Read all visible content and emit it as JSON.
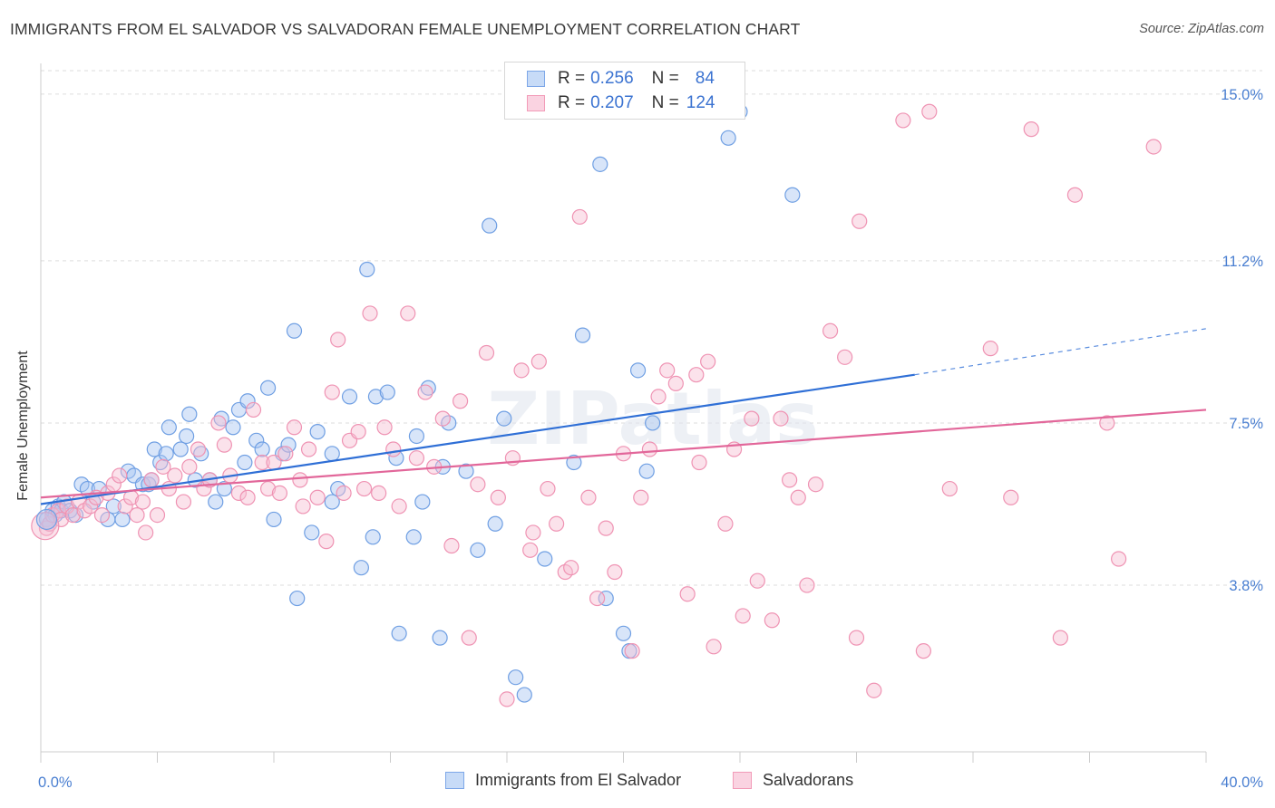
{
  "header": {
    "title": "IMMIGRANTS FROM EL SALVADOR VS SALVADORAN FEMALE UNEMPLOYMENT CORRELATION CHART",
    "source": "Source: ZipAtlas.com"
  },
  "watermark": "ZIPatlas",
  "legend": {
    "rows": [
      {
        "r_label": "R =",
        "r_value": "0.256",
        "n_label": "N =",
        "n_value": "84",
        "color": "#7da7e8"
      },
      {
        "r_label": "R =",
        "r_value": "0.207",
        "n_label": "N =",
        "n_value": "124",
        "color": "#f29bb8"
      }
    ]
  },
  "bottom_legend": {
    "items": [
      {
        "label": "Immigrants from El Salvador",
        "color": "#7da7e8"
      },
      {
        "label": "Salvadorans",
        "color": "#f29bb8"
      }
    ]
  },
  "colors": {
    "blue_fill": "#a9c6f2",
    "blue_stroke": "#6f9fe3",
    "blue_line": "#2f6fd6",
    "pink_fill": "#f7bfd2",
    "pink_stroke": "#ef93b3",
    "pink_line": "#e2679a",
    "grid": "#dddddd",
    "tick_text": "#4a7fd1"
  },
  "chart_data": {
    "type": "scatter",
    "title": "IMMIGRANTS FROM EL SALVADOR VS SALVADORAN FEMALE UNEMPLOYMENT CORRELATION CHART",
    "xlabel": "",
    "ylabel": "Female Unemployment",
    "xlim": [
      0,
      40
    ],
    "ylim": [
      0,
      15.7
    ],
    "y_ticks": [
      {
        "value": 3.8,
        "label": "3.8%"
      },
      {
        "value": 7.5,
        "label": "7.5%"
      },
      {
        "value": 11.2,
        "label": "11.2%"
      },
      {
        "value": 15.0,
        "label": "15.0%"
      }
    ],
    "x_ticks": [
      {
        "value": 0,
        "label": "0.0%"
      },
      {
        "value": 40,
        "label": "40.0%"
      }
    ],
    "grid": true,
    "legend_position": "top-center",
    "series": [
      {
        "name": "Immigrants from El Salvador",
        "r": 0.256,
        "n": 84,
        "trend": {
          "x0": 0,
          "y0": 5.65,
          "x1": 30,
          "y1": 8.6,
          "dashed_to_x": 40,
          "dashed_to_y": 9.65
        },
        "points": [
          [
            0.2,
            5.3
          ],
          [
            0.3,
            5.2
          ],
          [
            0.4,
            5.5
          ],
          [
            0.5,
            5.4
          ],
          [
            0.6,
            5.6
          ],
          [
            0.7,
            5.5
          ],
          [
            0.8,
            5.7
          ],
          [
            1.0,
            5.5
          ],
          [
            1.2,
            5.4
          ],
          [
            1.4,
            6.1
          ],
          [
            1.6,
            6.0
          ],
          [
            1.8,
            5.7
          ],
          [
            2.0,
            6.0
          ],
          [
            2.3,
            5.3
          ],
          [
            2.5,
            5.6
          ],
          [
            2.8,
            5.3
          ],
          [
            3.0,
            6.4
          ],
          [
            3.2,
            6.3
          ],
          [
            3.5,
            6.1
          ],
          [
            3.7,
            6.1
          ],
          [
            3.8,
            6.2
          ],
          [
            3.9,
            6.9
          ],
          [
            4.1,
            6.6
          ],
          [
            4.3,
            6.8
          ],
          [
            4.4,
            7.4
          ],
          [
            4.8,
            6.9
          ],
          [
            5.0,
            7.2
          ],
          [
            5.1,
            7.7
          ],
          [
            5.3,
            6.2
          ],
          [
            5.5,
            6.8
          ],
          [
            5.8,
            6.2
          ],
          [
            6.0,
            5.7
          ],
          [
            6.2,
            7.6
          ],
          [
            6.3,
            6.0
          ],
          [
            6.6,
            7.4
          ],
          [
            6.8,
            7.8
          ],
          [
            7.0,
            6.6
          ],
          [
            7.1,
            8.0
          ],
          [
            7.4,
            7.1
          ],
          [
            7.6,
            6.9
          ],
          [
            7.8,
            8.3
          ],
          [
            8.0,
            5.3
          ],
          [
            8.3,
            6.8
          ],
          [
            8.5,
            7.0
          ],
          [
            8.7,
            9.6
          ],
          [
            8.8,
            3.5
          ],
          [
            9.3,
            5.0
          ],
          [
            9.5,
            7.3
          ],
          [
            10.0,
            6.8
          ],
          [
            10.0,
            5.7
          ],
          [
            10.2,
            6.0
          ],
          [
            10.6,
            8.1
          ],
          [
            11.0,
            4.2
          ],
          [
            11.2,
            11.0
          ],
          [
            11.4,
            4.9
          ],
          [
            11.5,
            8.1
          ],
          [
            11.9,
            8.2
          ],
          [
            12.2,
            6.7
          ],
          [
            12.3,
            2.7
          ],
          [
            12.8,
            4.9
          ],
          [
            12.9,
            7.2
          ],
          [
            13.1,
            5.7
          ],
          [
            13.3,
            8.3
          ],
          [
            13.7,
            2.6
          ],
          [
            13.8,
            6.5
          ],
          [
            14.0,
            7.5
          ],
          [
            14.6,
            6.4
          ],
          [
            15.0,
            4.6
          ],
          [
            15.4,
            12.0
          ],
          [
            15.6,
            5.2
          ],
          [
            15.9,
            7.6
          ],
          [
            16.3,
            1.7
          ],
          [
            16.6,
            1.3
          ],
          [
            17.3,
            4.4
          ],
          [
            18.3,
            6.6
          ],
          [
            18.6,
            9.5
          ],
          [
            19.2,
            13.4
          ],
          [
            19.4,
            3.5
          ],
          [
            20.0,
            2.7
          ],
          [
            20.2,
            2.3
          ],
          [
            20.5,
            8.7
          ],
          [
            20.8,
            6.4
          ],
          [
            21.0,
            7.5
          ],
          [
            23.6,
            14.0
          ],
          [
            24.0,
            14.6
          ],
          [
            25.8,
            12.7
          ]
        ]
      },
      {
        "name": "Salvadorans",
        "r": 0.207,
        "n": 124,
        "trend": {
          "x0": 0,
          "y0": 5.8,
          "x1": 40,
          "y1": 7.8
        },
        "points": [
          [
            0.2,
            5.1
          ],
          [
            0.3,
            5.2
          ],
          [
            0.4,
            5.4
          ],
          [
            0.6,
            5.5
          ],
          [
            0.7,
            5.3
          ],
          [
            0.9,
            5.6
          ],
          [
            1.1,
            5.4
          ],
          [
            1.3,
            5.7
          ],
          [
            1.5,
            5.5
          ],
          [
            1.7,
            5.6
          ],
          [
            1.9,
            5.8
          ],
          [
            2.1,
            5.4
          ],
          [
            2.3,
            5.9
          ],
          [
            2.5,
            6.1
          ],
          [
            2.7,
            6.3
          ],
          [
            2.9,
            5.6
          ],
          [
            3.1,
            5.8
          ],
          [
            3.3,
            5.4
          ],
          [
            3.5,
            5.7
          ],
          [
            3.6,
            5.0
          ],
          [
            3.8,
            6.2
          ],
          [
            4.0,
            5.4
          ],
          [
            4.2,
            6.5
          ],
          [
            4.4,
            6.0
          ],
          [
            4.6,
            6.3
          ],
          [
            4.9,
            5.7
          ],
          [
            5.1,
            6.5
          ],
          [
            5.4,
            6.9
          ],
          [
            5.6,
            6.0
          ],
          [
            5.8,
            6.2
          ],
          [
            6.1,
            7.5
          ],
          [
            6.3,
            7.0
          ],
          [
            6.5,
            6.3
          ],
          [
            6.8,
            5.9
          ],
          [
            7.1,
            5.8
          ],
          [
            7.3,
            7.8
          ],
          [
            7.6,
            6.6
          ],
          [
            7.8,
            6.0
          ],
          [
            8.0,
            6.6
          ],
          [
            8.2,
            5.9
          ],
          [
            8.4,
            6.8
          ],
          [
            8.7,
            7.4
          ],
          [
            8.9,
            6.2
          ],
          [
            9.2,
            6.9
          ],
          [
            9.5,
            5.8
          ],
          [
            9.8,
            4.8
          ],
          [
            10.0,
            8.2
          ],
          [
            10.2,
            9.4
          ],
          [
            10.4,
            5.9
          ],
          [
            10.6,
            7.1
          ],
          [
            10.9,
            7.3
          ],
          [
            11.1,
            6.0
          ],
          [
            11.3,
            10.0
          ],
          [
            11.6,
            5.9
          ],
          [
            11.8,
            7.4
          ],
          [
            12.1,
            6.9
          ],
          [
            12.3,
            5.6
          ],
          [
            12.6,
            10.0
          ],
          [
            12.9,
            6.7
          ],
          [
            13.2,
            8.2
          ],
          [
            13.5,
            6.5
          ],
          [
            13.8,
            7.6
          ],
          [
            14.1,
            4.7
          ],
          [
            14.4,
            8.0
          ],
          [
            14.7,
            2.6
          ],
          [
            15.0,
            6.1
          ],
          [
            15.3,
            9.1
          ],
          [
            15.7,
            5.8
          ],
          [
            16.0,
            1.2
          ],
          [
            16.2,
            6.7
          ],
          [
            16.5,
            8.7
          ],
          [
            16.8,
            4.6
          ],
          [
            17.1,
            8.9
          ],
          [
            17.4,
            6.0
          ],
          [
            17.7,
            5.2
          ],
          [
            18.0,
            4.1
          ],
          [
            18.2,
            4.2
          ],
          [
            18.5,
            12.2
          ],
          [
            18.8,
            5.8
          ],
          [
            19.1,
            3.5
          ],
          [
            19.4,
            5.1
          ],
          [
            19.7,
            4.1
          ],
          [
            20.0,
            6.8
          ],
          [
            20.3,
            2.3
          ],
          [
            20.6,
            5.8
          ],
          [
            20.9,
            6.9
          ],
          [
            21.2,
            8.1
          ],
          [
            21.5,
            8.7
          ],
          [
            21.8,
            8.4
          ],
          [
            22.2,
            3.6
          ],
          [
            22.6,
            6.6
          ],
          [
            22.9,
            8.9
          ],
          [
            23.1,
            2.4
          ],
          [
            23.5,
            5.2
          ],
          [
            23.8,
            6.9
          ],
          [
            24.1,
            3.1
          ],
          [
            24.4,
            7.6
          ],
          [
            24.6,
            3.9
          ],
          [
            25.1,
            3.0
          ],
          [
            25.4,
            7.6
          ],
          [
            25.7,
            6.2
          ],
          [
            26.0,
            5.8
          ],
          [
            26.3,
            3.8
          ],
          [
            26.6,
            6.1
          ],
          [
            27.1,
            9.6
          ],
          [
            27.6,
            9.0
          ],
          [
            28.0,
            2.6
          ],
          [
            28.1,
            12.1
          ],
          [
            28.6,
            1.4
          ],
          [
            29.6,
            14.4
          ],
          [
            30.5,
            14.6
          ],
          [
            30.3,
            2.3
          ],
          [
            31.2,
            6.0
          ],
          [
            32.6,
            9.2
          ],
          [
            33.3,
            5.8
          ],
          [
            34.0,
            14.2
          ],
          [
            35.0,
            2.6
          ],
          [
            35.5,
            12.7
          ],
          [
            36.6,
            7.5
          ],
          [
            37.0,
            4.4
          ],
          [
            38.2,
            13.8
          ],
          [
            16.9,
            5.0
          ],
          [
            22.5,
            8.6
          ],
          [
            9.0,
            5.6
          ]
        ]
      }
    ]
  },
  "ylabel_text": "Female Unemployment"
}
